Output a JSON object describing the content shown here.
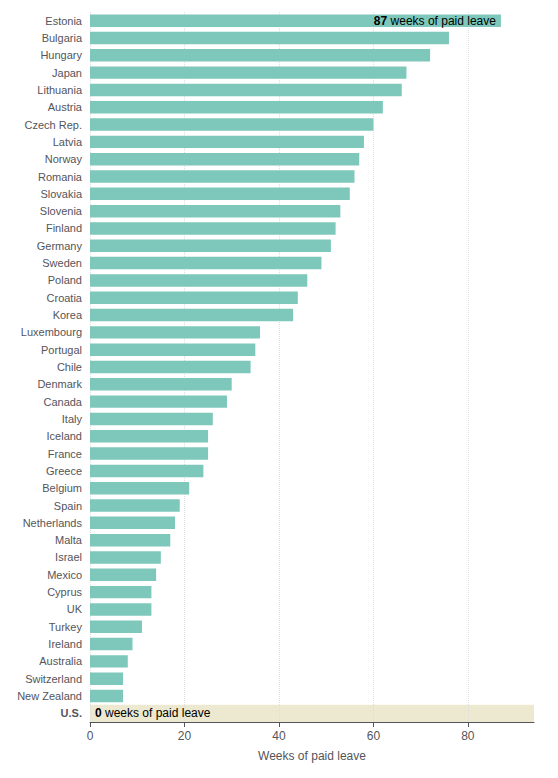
{
  "chart_data": {
    "type": "bar",
    "orientation": "horizontal",
    "categories": [
      "Estonia",
      "Bulgaria",
      "Hungary",
      "Japan",
      "Lithuania",
      "Austria",
      "Czech Rep.",
      "Latvia",
      "Norway",
      "Romania",
      "Slovakia",
      "Slovenia",
      "Finland",
      "Germany",
      "Sweden",
      "Poland",
      "Croatia",
      "Korea",
      "Luxembourg",
      "Portugal",
      "Chile",
      "Denmark",
      "Canada",
      "Italy",
      "Iceland",
      "France",
      "Greece",
      "Belgium",
      "Spain",
      "Netherlands",
      "Malta",
      "Israel",
      "Mexico",
      "Cyprus",
      "UK",
      "Turkey",
      "Ireland",
      "Australia",
      "Switzerland",
      "New Zealand",
      "U.S."
    ],
    "values": [
      87,
      76,
      72,
      67,
      66,
      62,
      60,
      58,
      57,
      56,
      55,
      53,
      52,
      51,
      49,
      46,
      44,
      43,
      36,
      35,
      34,
      30,
      29,
      26,
      25,
      25,
      24,
      21,
      19,
      18,
      17,
      15,
      14,
      13,
      13,
      11,
      9,
      8,
      7,
      7,
      0
    ],
    "color": "#7ec8bb",
    "xlabel": "Weeks of paid leave",
    "xlim": [
      0,
      94
    ],
    "xticks": [
      0,
      20,
      40,
      60,
      80
    ],
    "grid": true,
    "highlight": {
      "category": "U.S.",
      "color": "#ede9d0"
    },
    "annotations": [
      {
        "category": "Estonia",
        "value": 87,
        "text": "weeks of paid leave"
      },
      {
        "category": "U.S.",
        "value": 0,
        "text": "weeks of paid leave"
      }
    ]
  }
}
